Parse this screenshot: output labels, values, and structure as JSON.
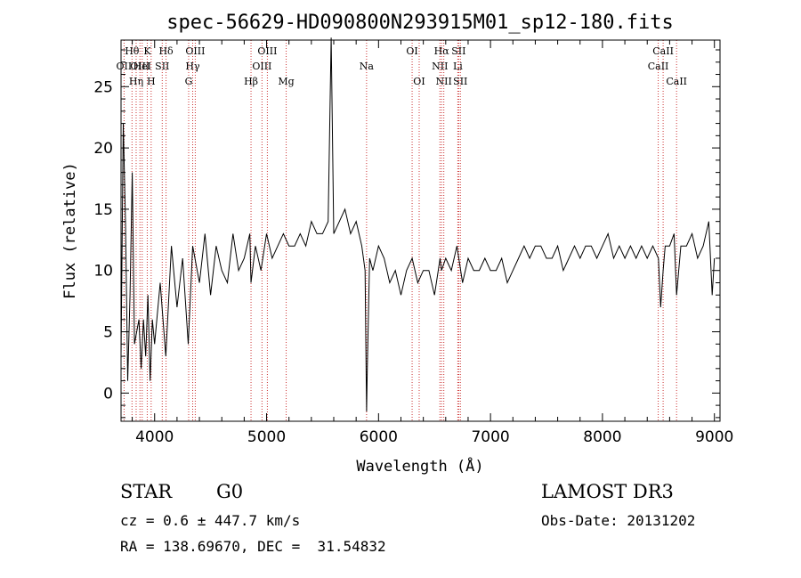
{
  "chart_data": {
    "type": "line",
    "title": "spec-56629-HD090800N293915M01_sp12-180.fits",
    "xlabel": "Wavelength (Å)",
    "ylabel": "Flux (relative)",
    "xlim": [
      3700,
      9050
    ],
    "ylim": [
      -2.3,
      28.8
    ],
    "xticks": [
      4000,
      5000,
      6000,
      7000,
      8000,
      9000
    ],
    "yticks": [
      0,
      5,
      10,
      15,
      20,
      25
    ],
    "grid": false,
    "series": [
      {
        "x": [
          3700,
          3720,
          3740,
          3760,
          3780,
          3800,
          3820,
          3840,
          3860,
          3880,
          3900,
          3920,
          3940,
          3960,
          3980,
          4000,
          4050,
          4100,
          4150,
          4200,
          4250,
          4300,
          4340,
          4400,
          4450,
          4500,
          4550,
          4600,
          4650,
          4700,
          4750,
          4800,
          4850,
          4861,
          4900,
          4950,
          5000,
          5050,
          5100,
          5150,
          5200,
          5250,
          5300,
          5350,
          5400,
          5450,
          5500,
          5550,
          5577,
          5600,
          5650,
          5700,
          5750,
          5800,
          5850,
          5880,
          5890,
          5893,
          5900,
          5920,
          5950,
          6000,
          6050,
          6100,
          6150,
          6200,
          6250,
          6300,
          6350,
          6400,
          6450,
          6500,
          6550,
          6563,
          6600,
          6650,
          6700,
          6750,
          6800,
          6850,
          6900,
          6950,
          7000,
          7050,
          7100,
          7150,
          7200,
          7250,
          7300,
          7350,
          7400,
          7450,
          7500,
          7550,
          7600,
          7650,
          7700,
          7750,
          7800,
          7850,
          7900,
          7950,
          8000,
          8050,
          8100,
          8150,
          8200,
          8250,
          8300,
          8350,
          8400,
          8450,
          8500,
          8520,
          8542,
          8560,
          8600,
          8640,
          8662,
          8700,
          8750,
          8800,
          8850,
          8900,
          8950,
          8980,
          9000
        ],
        "y": [
          3,
          22,
          14,
          1,
          8,
          18,
          4,
          5,
          6,
          2,
          6,
          3,
          8,
          1,
          6,
          4,
          9,
          3,
          12,
          7,
          11,
          4,
          12,
          9,
          13,
          8,
          12,
          10,
          9,
          13,
          10,
          11,
          13,
          9,
          12,
          10,
          13,
          11,
          12,
          13,
          12,
          12,
          13,
          12,
          14,
          13,
          13,
          14,
          29,
          13,
          14,
          15,
          13,
          14,
          12,
          10,
          1,
          -1.5,
          2,
          11,
          10,
          12,
          11,
          9,
          10,
          8,
          10,
          11,
          9,
          10,
          10,
          8,
          11,
          10,
          11,
          10,
          12,
          9,
          11,
          10,
          10,
          11,
          10,
          10,
          11,
          9,
          10,
          11,
          12,
          11,
          12,
          12,
          11,
          11,
          12,
          10,
          11,
          12,
          11,
          12,
          12,
          11,
          12,
          13,
          11,
          12,
          11,
          12,
          11,
          12,
          11,
          12,
          11,
          7,
          10,
          12,
          12,
          13,
          8,
          12,
          12,
          13,
          11,
          12,
          14,
          8,
          11
        ]
      }
    ],
    "annotations": [
      {
        "label": "OII",
        "x": 3727,
        "row": 2
      },
      {
        "label": "Hθ",
        "x": 3798,
        "row": 1
      },
      {
        "label": "OIII",
        "x": 3869,
        "row": 2
      },
      {
        "label": "HeI",
        "x": 3889,
        "row": 2
      },
      {
        "label": "Hη",
        "x": 3835,
        "row": 3
      },
      {
        "label": "K",
        "x": 3934,
        "row": 1
      },
      {
        "label": "H",
        "x": 3969,
        "row": 3
      },
      {
        "label": "SII",
        "x": 4068,
        "row": 2
      },
      {
        "label": "Hδ",
        "x": 4102,
        "row": 1
      },
      {
        "label": "OIII",
        "x": 4363,
        "row": 1
      },
      {
        "label": "Hγ",
        "x": 4340,
        "row": 2
      },
      {
        "label": "G",
        "x": 4304,
        "row": 3
      },
      {
        "label": "Hβ",
        "x": 4861,
        "row": 3
      },
      {
        "label": "OIII",
        "x": 5007,
        "row": 1
      },
      {
        "label": "OIII",
        "x": 4959,
        "row": 2
      },
      {
        "label": "Mg",
        "x": 5175,
        "row": 3
      },
      {
        "label": "Na",
        "x": 5893,
        "row": 2
      },
      {
        "label": "OI",
        "x": 6300,
        "row": 1
      },
      {
        "label": "OI",
        "x": 6363,
        "row": 3
      },
      {
        "label": "Hα",
        "x": 6563,
        "row": 1
      },
      {
        "label": "SII",
        "x": 6716,
        "row": 1
      },
      {
        "label": "NII",
        "x": 6548,
        "row": 2
      },
      {
        "label": "Li",
        "x": 6708,
        "row": 2
      },
      {
        "label": "NII",
        "x": 6583,
        "row": 3
      },
      {
        "label": "SII",
        "x": 6731,
        "row": 3
      },
      {
        "label": "CaII",
        "x": 8542,
        "row": 1
      },
      {
        "label": "CaII",
        "x": 8498,
        "row": 2
      },
      {
        "label": "CaII",
        "x": 8662,
        "row": 3
      }
    ]
  },
  "info": {
    "type_label": "STAR",
    "subclass": "G0",
    "survey": "LAMOST DR3",
    "cz": "cz = 0.6 ± 447.7 km/s",
    "obs_date": "Obs-Date: 20131202",
    "radec": "RA = 138.69670, DEC =  31.54832"
  }
}
